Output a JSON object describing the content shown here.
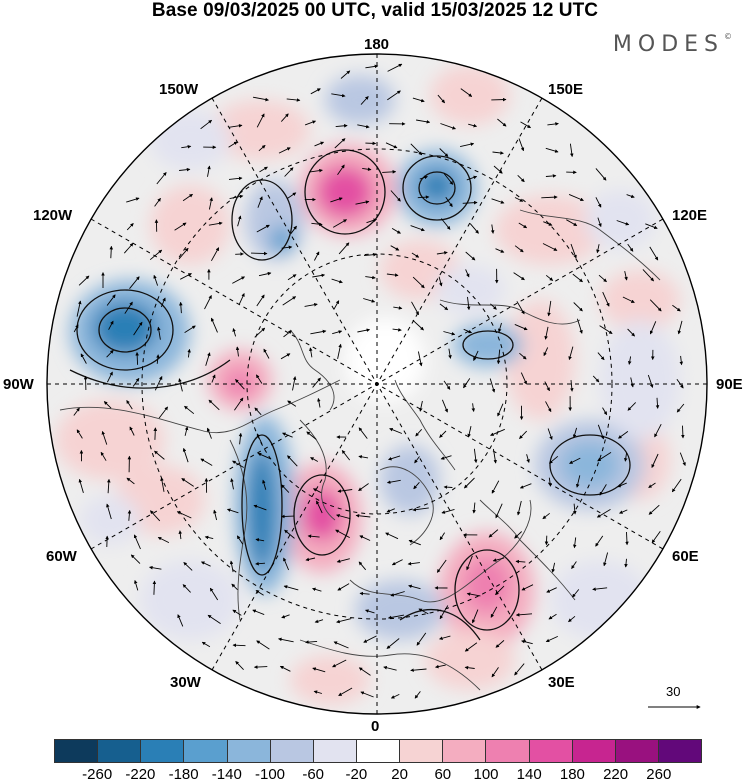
{
  "title": "Base 09/03/2025 00 UTC, valid 15/03/2025 12 UTC",
  "brand": "MODES",
  "brand_mark": "©",
  "map": {
    "projection": "north-polar-stereographic",
    "fill_field": "anomaly (shaded)",
    "overlays": [
      "coastlines",
      "graticule-30deg",
      "wind-vectors",
      "streamline-contours"
    ],
    "longitude_labels": {
      "top": "180",
      "bottom": "0",
      "left": "90W",
      "right": "90E",
      "upper_left_1": "150W",
      "upper_left_2": "120W",
      "upper_right_1": "150E",
      "upper_right_2": "120E",
      "lower_left_1": "60W",
      "lower_left_2": "30W",
      "lower_right_1": "60E",
      "lower_right_2": "30E"
    }
  },
  "reference_vector": {
    "value": "30"
  },
  "colorbar": {
    "colors": [
      "#0d3a5c",
      "#165f8f",
      "#2a7fb6",
      "#5a9fcf",
      "#8bb6db",
      "#b9c7e2",
      "#e2e3f0",
      "#ffffff",
      "#f6d3d3",
      "#f4adc0",
      "#ee80b0",
      "#e350a3",
      "#c72590",
      "#99117f",
      "#62087a"
    ],
    "tick_labels": [
      "-260",
      "-220",
      "-180",
      "-140",
      "-100",
      "-60",
      "-20",
      "20",
      "60",
      "100",
      "140",
      "180",
      "220",
      "260"
    ]
  }
}
